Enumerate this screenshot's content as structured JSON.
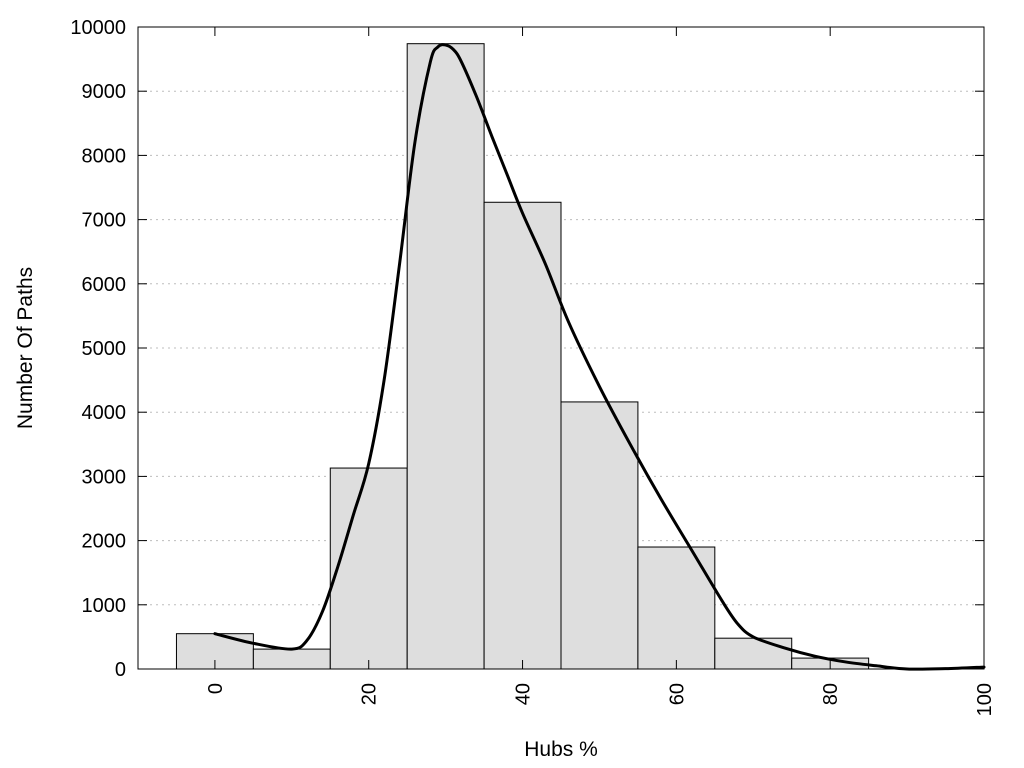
{
  "chart_data": {
    "type": "bar",
    "subtype": "histogram-with-density",
    "title": "",
    "xlabel": "Hubs %",
    "ylabel": "Number Of Paths",
    "xlim": [
      -10,
      100
    ],
    "ylim": [
      0,
      10000
    ],
    "x_ticks": [
      0,
      20,
      40,
      60,
      80,
      100
    ],
    "y_ticks": [
      0,
      1000,
      2000,
      3000,
      4000,
      5000,
      6000,
      7000,
      8000,
      9000,
      10000
    ],
    "grid": "horizontal-dotted",
    "bin_width": 10,
    "bins": [
      {
        "center": 0,
        "value": 550
      },
      {
        "center": 10,
        "value": 310
      },
      {
        "center": 20,
        "value": 3130
      },
      {
        "center": 30,
        "value": 9740
      },
      {
        "center": 40,
        "value": 7270
      },
      {
        "center": 50,
        "value": 4160
      },
      {
        "center": 60,
        "value": 1900
      },
      {
        "center": 70,
        "value": 480
      },
      {
        "center": 80,
        "value": 170
      }
    ],
    "density_curve": {
      "x": [
        0,
        5,
        10,
        12,
        14,
        16,
        18,
        20,
        22,
        24,
        26,
        28,
        29,
        30,
        31,
        32,
        34,
        36,
        38,
        40,
        43,
        46,
        50,
        54,
        58,
        62,
        66,
        68,
        70,
        74,
        78,
        82,
        86,
        90,
        95,
        100
      ],
      "y": [
        550,
        400,
        310,
        450,
        900,
        1600,
        2400,
        3200,
        4500,
        6300,
        8200,
        9450,
        9690,
        9720,
        9650,
        9470,
        8920,
        8300,
        7700,
        7100,
        6300,
        5400,
        4400,
        3500,
        2650,
        1850,
        1050,
        700,
        500,
        330,
        200,
        110,
        50,
        0,
        5,
        30
      ]
    }
  }
}
